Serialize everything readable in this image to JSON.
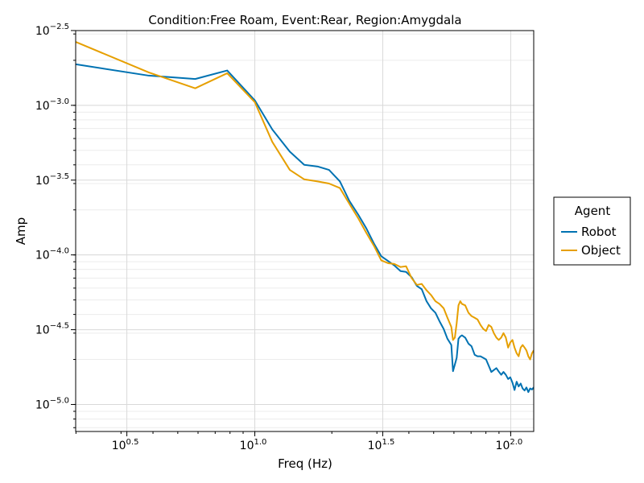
{
  "chart_data": {
    "type": "line",
    "title": "Condition:Free Roam, Event:Rear, Region:Amygdala",
    "xlabel": "Freq (Hz)",
    "ylabel": "Amp",
    "x_scale": "log10",
    "y_scale": "log10",
    "xlim": [
      1.995,
      123.0
    ],
    "ylim": [
      6.6e-06,
      0.00316
    ],
    "x_ticks": [
      {
        "value": 3.1623,
        "label_base": "10",
        "label_exp": "0.5"
      },
      {
        "value": 10,
        "label_base": "10",
        "label_exp": "1.0"
      },
      {
        "value": 31.623,
        "label_base": "10",
        "label_exp": "1.5"
      },
      {
        "value": 100,
        "label_base": "10",
        "label_exp": "2.0"
      }
    ],
    "y_ticks": [
      {
        "value": 0.0031623,
        "label_base": "10",
        "label_exp": "−2.5"
      },
      {
        "value": 0.001,
        "label_base": "10",
        "label_exp": "−3.0"
      },
      {
        "value": 0.00031623,
        "label_base": "10",
        "label_exp": "−3.5"
      },
      {
        "value": 0.0001,
        "label_base": "10",
        "label_exp": "−4.0"
      },
      {
        "value": 3.1623e-05,
        "label_base": "10",
        "label_exp": "−4.5"
      },
      {
        "value": 1e-05,
        "label_base": "10",
        "label_exp": "−5.0"
      }
    ],
    "grid": true,
    "legend": {
      "title": "Agent",
      "position": "right"
    },
    "series": [
      {
        "name": "Robot",
        "color": "#0072B2",
        "points": [
          [
            2.0,
            0.00188
          ],
          [
            3.85,
            0.00158
          ],
          [
            5.85,
            0.0015
          ],
          [
            7.8,
            0.00171
          ],
          [
            10.0,
            0.00108
          ],
          [
            11.7,
            0.00069
          ],
          [
            13.7,
            0.00049
          ],
          [
            15.6,
            0.0004
          ],
          [
            17.6,
            0.00039
          ],
          [
            19.5,
            0.00037
          ],
          [
            21.5,
            0.00031
          ],
          [
            23.4,
            0.00023
          ],
          [
            25.4,
            0.000185
          ],
          [
            27.3,
            0.00015
          ],
          [
            29.3,
            0.000118
          ],
          [
            31.2,
            9.8e-05
          ],
          [
            33.2,
            9.1e-05
          ],
          [
            35.1,
            8.5e-05
          ],
          [
            37.1,
            7.8e-05
          ],
          [
            39.0,
            7.7e-05
          ],
          [
            41.0,
            7.1e-05
          ],
          [
            43.0,
            6.2e-05
          ],
          [
            44.9,
            5.9e-05
          ],
          [
            46.9,
            4.9e-05
          ],
          [
            48.8,
            4.4e-05
          ],
          [
            50.8,
            4.1e-05
          ],
          [
            52.7,
            3.6e-05
          ],
          [
            54.7,
            3.2e-05
          ],
          [
            56.6,
            2.75e-05
          ],
          [
            58.6,
            2.5e-05
          ],
          [
            59.5,
            1.67e-05
          ],
          [
            60.5,
            1.85e-05
          ],
          [
            61.5,
            2.05e-05
          ],
          [
            62.5,
            2.75e-05
          ],
          [
            63.5,
            2.85e-05
          ],
          [
            64.5,
            2.9e-05
          ],
          [
            66.4,
            2.8e-05
          ],
          [
            68.4,
            2.55e-05
          ],
          [
            70.3,
            2.45e-05
          ],
          [
            72.3,
            2.15e-05
          ],
          [
            74.2,
            2.1e-05
          ],
          [
            76.2,
            2.1e-05
          ],
          [
            78.1,
            2.05e-05
          ],
          [
            80.1,
            2e-05
          ],
          [
            82.0,
            1.82e-05
          ],
          [
            84.0,
            1.65e-05
          ],
          [
            85.9,
            1.7e-05
          ],
          [
            87.9,
            1.75e-05
          ],
          [
            89.8,
            1.66e-05
          ],
          [
            91.8,
            1.58e-05
          ],
          [
            93.7,
            1.65e-05
          ],
          [
            95.7,
            1.58e-05
          ],
          [
            97.7,
            1.48e-05
          ],
          [
            99.6,
            1.52e-05
          ],
          [
            101.6,
            1.4e-05
          ],
          [
            103.5,
            1.25e-05
          ],
          [
            105.5,
            1.42e-05
          ],
          [
            107.4,
            1.32e-05
          ],
          [
            109.4,
            1.38e-05
          ],
          [
            111.3,
            1.28e-05
          ],
          [
            113.3,
            1.24e-05
          ],
          [
            115.2,
            1.3e-05
          ],
          [
            117.2,
            1.21e-05
          ],
          [
            119.1,
            1.28e-05
          ],
          [
            121.1,
            1.26e-05
          ],
          [
            123.0,
            1.3e-05
          ]
        ]
      },
      {
        "name": "Object",
        "color": "#E69F00",
        "points": [
          [
            2.0,
            0.00265
          ],
          [
            3.85,
            0.00166
          ],
          [
            5.85,
            0.0013
          ],
          [
            7.8,
            0.00164
          ],
          [
            10.0,
            0.00105
          ],
          [
            11.7,
            0.00057
          ],
          [
            13.7,
            0.00037
          ],
          [
            15.6,
            0.00032
          ],
          [
            17.6,
            0.00031
          ],
          [
            19.5,
            0.0003
          ],
          [
            21.5,
            0.00028
          ],
          [
            23.4,
            0.00022
          ],
          [
            25.4,
            0.000175
          ],
          [
            27.3,
            0.00014
          ],
          [
            29.3,
            0.000114
          ],
          [
            31.2,
            9.2e-05
          ],
          [
            33.2,
            8.8e-05
          ],
          [
            35.1,
            8.7e-05
          ],
          [
            37.1,
            8.3e-05
          ],
          [
            39.0,
            8.4e-05
          ],
          [
            41.0,
            7e-05
          ],
          [
            43.0,
            6.3e-05
          ],
          [
            44.9,
            6.4e-05
          ],
          [
            46.9,
            5.8e-05
          ],
          [
            48.8,
            5.4e-05
          ],
          [
            50.8,
            4.9e-05
          ],
          [
            52.7,
            4.7e-05
          ],
          [
            54.7,
            4.4e-05
          ],
          [
            56.6,
            3.8e-05
          ],
          [
            58.6,
            3.3e-05
          ],
          [
            59.5,
            2.7e-05
          ],
          [
            60.5,
            2.8e-05
          ],
          [
            61.5,
            3.5e-05
          ],
          [
            62.5,
            4.6e-05
          ],
          [
            63.5,
            4.9e-05
          ],
          [
            64.5,
            4.7e-05
          ],
          [
            66.4,
            4.6e-05
          ],
          [
            68.4,
            4.1e-05
          ],
          [
            70.3,
            3.9e-05
          ],
          [
            72.3,
            3.8e-05
          ],
          [
            74.2,
            3.7e-05
          ],
          [
            76.2,
            3.4e-05
          ],
          [
            78.1,
            3.2e-05
          ],
          [
            80.1,
            3.1e-05
          ],
          [
            82.0,
            3.4e-05
          ],
          [
            84.0,
            3.3e-05
          ],
          [
            85.9,
            3e-05
          ],
          [
            87.9,
            2.8e-05
          ],
          [
            89.8,
            2.7e-05
          ],
          [
            91.8,
            2.8e-05
          ],
          [
            93.7,
            3e-05
          ],
          [
            95.7,
            2.8e-05
          ],
          [
            97.7,
            2.4e-05
          ],
          [
            99.6,
            2.6e-05
          ],
          [
            101.6,
            2.7e-05
          ],
          [
            103.5,
            2.4e-05
          ],
          [
            105.5,
            2.2e-05
          ],
          [
            107.4,
            2.1e-05
          ],
          [
            109.4,
            2.4e-05
          ],
          [
            111.3,
            2.5e-05
          ],
          [
            113.3,
            2.4e-05
          ],
          [
            115.2,
            2.3e-05
          ],
          [
            117.2,
            2.1e-05
          ],
          [
            119.1,
            2e-05
          ],
          [
            121.1,
            2.2e-05
          ],
          [
            123.0,
            2.3e-05
          ]
        ]
      }
    ]
  }
}
